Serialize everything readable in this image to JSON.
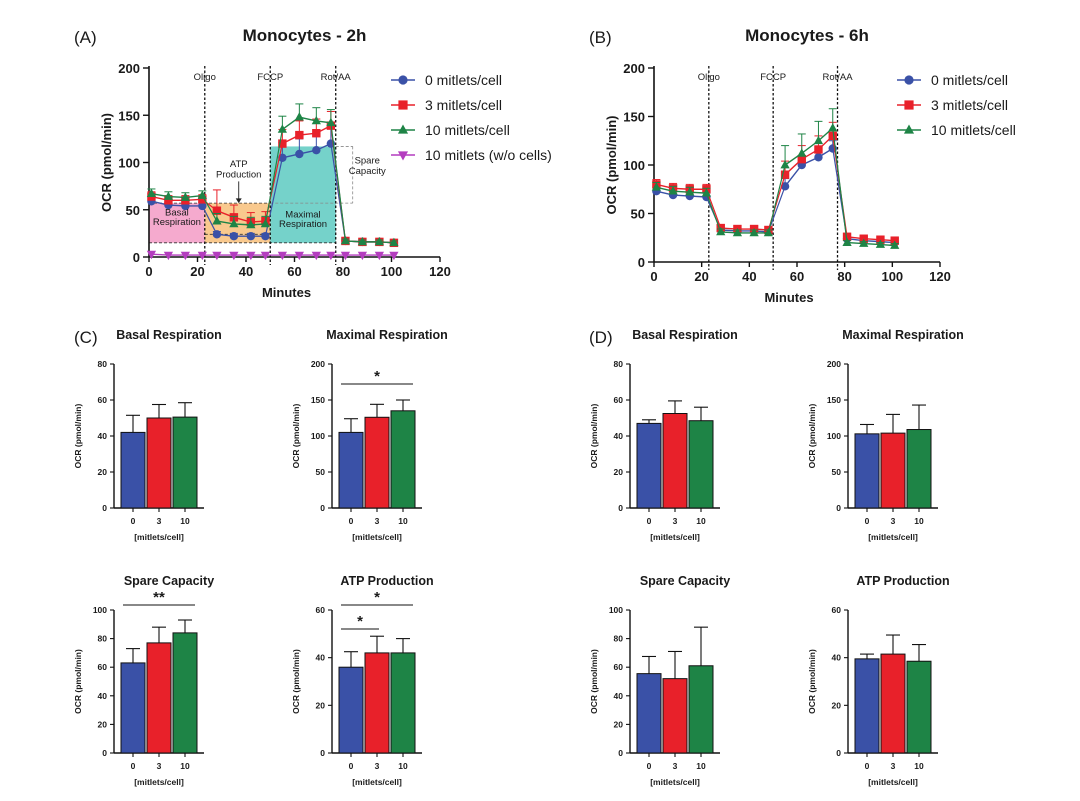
{
  "panel_labels": [
    "(A)",
    "(B)",
    "(C)",
    "(D)"
  ],
  "colors": {
    "0": "#3a51a7",
    "3": "#e8212a",
    "10": "#1e8446",
    "no_cells": "#b43dbf",
    "basal_fill": "#f39bc6",
    "atp_fill": "#f8c07a",
    "maximal_fill": "#66cdc4"
  },
  "markers": {
    "0": "circle",
    "3": "square",
    "10": "triangle-up",
    "no_cells": "triangle-down"
  },
  "chart_data": [
    {
      "id": "A",
      "type": "line",
      "title": "Monocytes - 2h",
      "xlabel": "Minutes",
      "ylabel": "OCR (pmol/min)",
      "xlim": [
        0,
        120
      ],
      "ylim": [
        0,
        200
      ],
      "xticks": [
        "0",
        "20",
        "40",
        "60",
        "80",
        "100",
        "120"
      ],
      "yticks": [
        "0",
        "50",
        "100",
        "150",
        "200"
      ],
      "legend": "top-right",
      "injections": [
        {
          "label": "Oligo",
          "x": 23
        },
        {
          "label": "FCCP",
          "x": 50
        },
        {
          "label": "Rot/AA",
          "x": 77
        }
      ],
      "x": [
        1,
        8,
        15,
        22,
        28,
        35,
        42,
        48,
        55,
        62,
        69,
        75,
        81,
        88,
        95,
        101
      ],
      "series": [
        {
          "name": "0 mitlets/cell",
          "key": "0",
          "values": [
            59,
            55,
            54,
            54,
            24,
            22,
            22,
            22,
            105,
            109,
            113,
            120,
            17,
            16,
            16,
            15
          ],
          "err": [
            4,
            4,
            4,
            4,
            3,
            3,
            3,
            3,
            16,
            16,
            16,
            16,
            2,
            2,
            2,
            2
          ]
        },
        {
          "name": "3 mitlets/cell",
          "key": "3",
          "values": [
            64,
            60,
            60,
            61,
            49,
            42,
            37,
            38,
            120,
            129,
            131,
            139,
            17,
            16,
            16,
            15
          ],
          "err": [
            5,
            5,
            5,
            5,
            22,
            13,
            10,
            10,
            15,
            15,
            15,
            15,
            2,
            2,
            2,
            2
          ]
        },
        {
          "name": "10 mitlets/cell",
          "key": "10",
          "values": [
            67,
            64,
            63,
            65,
            38,
            35,
            34,
            35,
            135,
            148,
            144,
            142,
            17,
            16,
            16,
            15
          ],
          "err": [
            5,
            5,
            5,
            5,
            8,
            8,
            8,
            8,
            14,
            14,
            14,
            14,
            2,
            2,
            2,
            2
          ]
        },
        {
          "name": "10 mitlets (w/o cells)",
          "key": "no_cells",
          "values": [
            3,
            2,
            2,
            2,
            2,
            2,
            2,
            2,
            2,
            2,
            2,
            2,
            2,
            2,
            2,
            2
          ],
          "err": [
            0,
            0,
            0,
            0,
            0,
            0,
            0,
            0,
            0,
            0,
            0,
            0,
            0,
            0,
            0,
            0
          ]
        }
      ],
      "annotations": {
        "basal": [
          "Basal",
          "Respiration"
        ],
        "atp": [
          "ATP",
          "Production"
        ],
        "maximal": [
          "Maximal",
          "Respiration"
        ],
        "spare": [
          "Spare",
          "Capacity"
        ]
      }
    },
    {
      "id": "B",
      "type": "line",
      "title": "Monocytes - 6h",
      "xlabel": "Minutes",
      "ylabel": "OCR (pmol/min)",
      "xlim": [
        0,
        120
      ],
      "ylim": [
        0,
        200
      ],
      "xticks": [
        "0",
        "20",
        "40",
        "60",
        "80",
        "100",
        "120"
      ],
      "yticks": [
        "0",
        "50",
        "100",
        "150",
        "200"
      ],
      "legend": "top-right",
      "injections": [
        {
          "label": "Oligo",
          "x": 23
        },
        {
          "label": "FCCP",
          "x": 50
        },
        {
          "label": "Rot/AA",
          "x": 77
        }
      ],
      "x": [
        1,
        8,
        15,
        22,
        28,
        35,
        42,
        48,
        55,
        62,
        69,
        75,
        81,
        88,
        95,
        101
      ],
      "series": [
        {
          "name": "0 mitlets/cell",
          "key": "0",
          "values": [
            73,
            69,
            68,
            67,
            33,
            32,
            32,
            31,
            78,
            100,
            108,
            117,
            24,
            22,
            21,
            20
          ],
          "err": [
            4,
            4,
            4,
            4,
            3,
            3,
            3,
            3,
            8,
            8,
            8,
            8,
            2,
            2,
            2,
            2
          ]
        },
        {
          "name": "3 mitlets/cell",
          "key": "3",
          "values": [
            80,
            76,
            75,
            75,
            35,
            34,
            34,
            33,
            90,
            106,
            116,
            130,
            26,
            24,
            23,
            22
          ],
          "err": [
            5,
            5,
            5,
            5,
            3,
            3,
            3,
            3,
            14,
            14,
            14,
            14,
            2,
            2,
            2,
            2
          ]
        },
        {
          "name": "10 mitlets/cell",
          "key": "10",
          "values": [
            77,
            73,
            72,
            71,
            31,
            30,
            30,
            30,
            100,
            112,
            125,
            138,
            20,
            19,
            18,
            17
          ],
          "err": [
            5,
            5,
            5,
            5,
            3,
            3,
            3,
            3,
            20,
            20,
            20,
            20,
            2,
            2,
            2,
            2
          ]
        }
      ]
    },
    {
      "id": "C1",
      "type": "bar",
      "title": "Basal Respiration",
      "xlabel": "[mitlets/cell]",
      "ylabel": "OCR (pmol/min)",
      "categories": [
        "0",
        "3",
        "10"
      ],
      "values": [
        42,
        50,
        50.5
      ],
      "err": [
        9.5,
        7.5,
        8
      ],
      "ylim": [
        0,
        80
      ],
      "yticks": [
        "0",
        "20",
        "40",
        "60",
        "80"
      ],
      "significance": []
    },
    {
      "id": "C2",
      "type": "bar",
      "title": "Maximal Respiration",
      "xlabel": "[mitlets/cell]",
      "ylabel": "OCR (pmol/min)",
      "categories": [
        "0",
        "3",
        "10"
      ],
      "values": [
        105,
        126,
        135
      ],
      "err": [
        19,
        18,
        15
      ],
      "ylim": [
        0,
        200
      ],
      "yticks": [
        "0",
        "50",
        "100",
        "150",
        "200"
      ],
      "significance": [
        {
          "from": 0,
          "to": 2,
          "label": "*"
        }
      ]
    },
    {
      "id": "C3",
      "type": "bar",
      "title": "Spare Capacity",
      "xlabel": "[mitlets/cell]",
      "ylabel": "OCR (pmol/min)",
      "categories": [
        "0",
        "3",
        "10"
      ],
      "values": [
        63,
        77,
        84
      ],
      "err": [
        10,
        11,
        9
      ],
      "ylim": [
        0,
        100
      ],
      "yticks": [
        "0",
        "20",
        "40",
        "60",
        "80",
        "100"
      ],
      "significance": [
        {
          "from": 0,
          "to": 2,
          "label": "**"
        }
      ]
    },
    {
      "id": "C4",
      "type": "bar",
      "title": "ATP Production",
      "xlabel": "[mitlets/cell]",
      "ylabel": "OCR (pmol/min)",
      "categories": [
        "0",
        "3",
        "10"
      ],
      "values": [
        36,
        42,
        42
      ],
      "err": [
        6.5,
        7,
        6
      ],
      "ylim": [
        0,
        60
      ],
      "yticks": [
        "0",
        "20",
        "40",
        "60"
      ],
      "significance": [
        {
          "from": 0,
          "to": 2,
          "label": "*"
        },
        {
          "from": 0,
          "to": 1,
          "label": "*"
        }
      ]
    },
    {
      "id": "D1",
      "type": "bar",
      "title": "Basal Respiration",
      "xlabel": "[mitlets/cell]",
      "ylabel": "OCR (pmol/min)",
      "categories": [
        "0",
        "3",
        "10"
      ],
      "values": [
        47,
        52.5,
        48.5
      ],
      "err": [
        2,
        7,
        7.5
      ],
      "ylim": [
        0,
        80
      ],
      "yticks": [
        "0",
        "20",
        "40",
        "60",
        "80"
      ],
      "significance": []
    },
    {
      "id": "D2",
      "type": "bar",
      "title": "Maximal Respiration",
      "xlabel": "[mitlets/cell]",
      "ylabel": "OCR (pmol/min)",
      "categories": [
        "0",
        "3",
        "10"
      ],
      "values": [
        103,
        104,
        109
      ],
      "err": [
        13,
        26,
        34
      ],
      "ylim": [
        0,
        200
      ],
      "yticks": [
        "0",
        "50",
        "100",
        "150",
        "200"
      ],
      "significance": []
    },
    {
      "id": "D3",
      "type": "bar",
      "title": "Spare Capacity",
      "xlabel": "[mitlets/cell]",
      "ylabel": "OCR (pmol/min)",
      "categories": [
        "0",
        "3",
        "10"
      ],
      "values": [
        55.5,
        52,
        61
      ],
      "err": [
        12,
        19,
        27
      ],
      "ylim": [
        0,
        100
      ],
      "yticks": [
        "0",
        "20",
        "40",
        "60",
        "80",
        "100"
      ],
      "significance": []
    },
    {
      "id": "D4",
      "type": "bar",
      "title": "ATP Production",
      "xlabel": "[mitlets/cell]",
      "ylabel": "OCR (pmol/min)",
      "categories": [
        "0",
        "3",
        "10"
      ],
      "values": [
        39.5,
        41.5,
        38.5
      ],
      "err": [
        2,
        8,
        7
      ],
      "ylim": [
        0,
        60
      ],
      "yticks": [
        "0",
        "20",
        "40",
        "60"
      ],
      "significance": []
    }
  ]
}
